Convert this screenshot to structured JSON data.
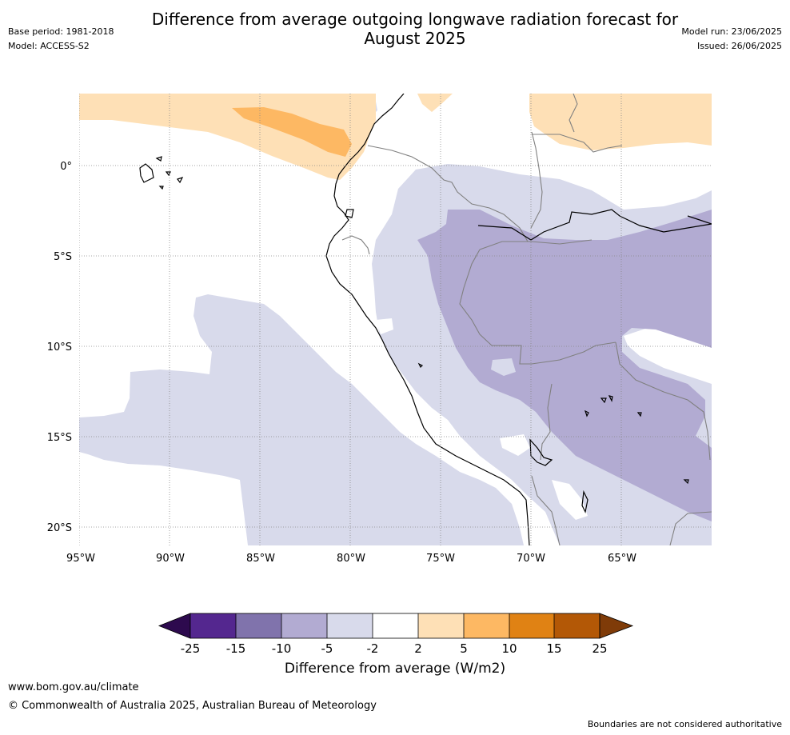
{
  "title": "Difference from average outgoing longwave radiation forecast for August 2025",
  "title_line1": "Difference from average outgoing longwave radiation forecast for",
  "title_line2": "August 2025",
  "meta_left": {
    "base_period": "Base period: 1981-2018",
    "model": "Model: ACCESS-S2"
  },
  "meta_right": {
    "model_run": "Model run: 23/06/2025",
    "issued": "Issued: 26/06/2025"
  },
  "map": {
    "lat_labels": [
      "0°",
      "5°S",
      "10°S",
      "15°S",
      "20°S"
    ],
    "lon_labels": [
      "95°W",
      "90°W",
      "85°W",
      "80°W",
      "75°W",
      "70°W",
      "65°W"
    ]
  },
  "colorbar": {
    "label": "Difference from average (W/m2)",
    "ticks": [
      "-25",
      "-15",
      "-10",
      "-5",
      "-2",
      "2",
      "5",
      "10",
      "15",
      "25"
    ],
    "colors": {
      "lt_neg25": "#2d0a4e",
      "neg25_neg15": "#54278f",
      "neg15_neg10": "#8073ac",
      "neg10_neg5": "#b2abd2",
      "neg5_neg2": "#d8daeb",
      "neg2_2": "#ffffff",
      "2_5": "#fee0b6",
      "5_10": "#fdb863",
      "10_15": "#e08214",
      "15_25": "#b35806",
      "gt_25": "#7f3b08"
    }
  },
  "footer": {
    "url": "www.bom.gov.au/climate",
    "copyright": "© Commonwealth of Australia 2025, Australian Bureau of Meteorology",
    "note": "Boundaries are not considered authoritative"
  }
}
